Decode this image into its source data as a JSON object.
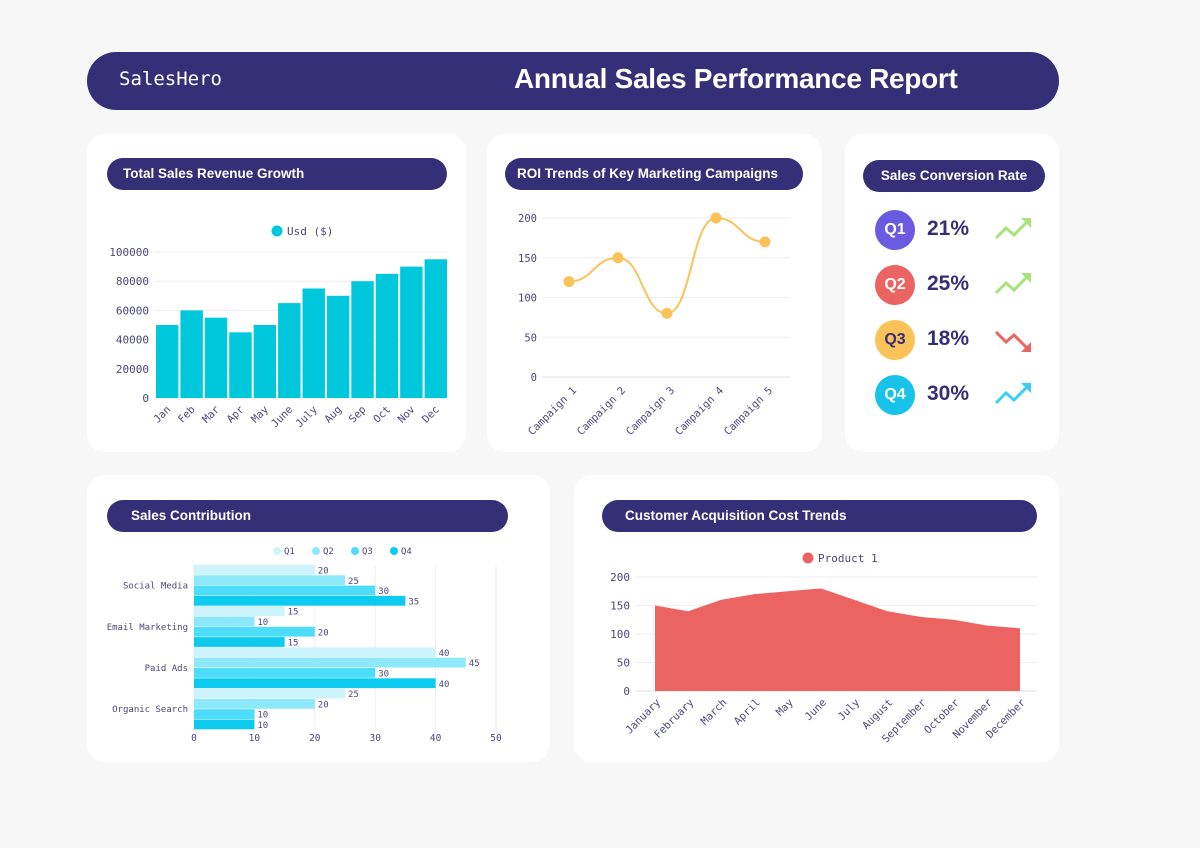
{
  "header": {
    "brand": "SalesHero",
    "title": "Annual Sales Performance Report"
  },
  "colors": {
    "navy": "#352f77",
    "teal": "#00c8dc",
    "orange": "#fcc25a",
    "red": "#eb6461"
  },
  "revenue": {
    "title": "Total Sales Revenue Growth",
    "chart_data": {
      "type": "bar",
      "title": "Total Sales Revenue Growth",
      "legend": [
        "Usd ($)"
      ],
      "categories": [
        "Jan",
        "Feb",
        "Mar",
        "Apr",
        "May",
        "June",
        "July",
        "Aug",
        "Sep",
        "Oct",
        "Nov",
        "Dec"
      ],
      "values": [
        50000,
        60000,
        55000,
        45000,
        50000,
        65000,
        75000,
        70000,
        80000,
        85000,
        90000,
        95000
      ],
      "yticks": [
        "0",
        "20000",
        "40000",
        "60000",
        "80000",
        "100000"
      ],
      "ylim": [
        0,
        100000
      ]
    }
  },
  "roi": {
    "title": "ROI Trends of Key Marketing Campaigns",
    "chart_data": {
      "type": "line",
      "categories": [
        "Campaign 1",
        "Campaign 2",
        "Campaign 3",
        "Campaign 4",
        "Campaign 5"
      ],
      "values": [
        120,
        150,
        80,
        200,
        170
      ],
      "yticks": [
        "0",
        "50",
        "100",
        "150",
        "200"
      ],
      "ylim": [
        0,
        200
      ]
    }
  },
  "conversion": {
    "title": "Sales Conversion Rate",
    "items": [
      {
        "label": "Q1",
        "value": "21%",
        "trend": "up",
        "badge_color": "#6a5ae0",
        "trend_color": "#a6e37a"
      },
      {
        "label": "Q2",
        "value": "25%",
        "trend": "up",
        "badge_color": "#eb6461",
        "trend_color": "#a6e37a"
      },
      {
        "label": "Q3",
        "value": "18%",
        "trend": "down",
        "badge_color": "#fcc25a",
        "trend_color": "#eb6461"
      },
      {
        "label": "Q4",
        "value": "30%",
        "trend": "up",
        "badge_color": "#17c3e8",
        "trend_color": "#3ad0f5"
      }
    ]
  },
  "contribution": {
    "title": "Sales Contribution",
    "chart_data": {
      "type": "bar",
      "orientation": "horizontal",
      "categories": [
        "Social Media",
        "Email Marketing",
        "Paid Ads",
        "Organic Search"
      ],
      "series": [
        {
          "name": "Q1",
          "color": "#cdf4fc",
          "values": [
            20,
            15,
            40,
            25
          ]
        },
        {
          "name": "Q2",
          "color": "#8ce8fa",
          "values": [
            25,
            10,
            45,
            20
          ]
        },
        {
          "name": "Q3",
          "color": "#4ddcfa",
          "values": [
            30,
            20,
            30,
            10
          ]
        },
        {
          "name": "Q4",
          "color": "#0ccbee",
          "values": [
            35,
            15,
            40,
            10
          ]
        }
      ],
      "xticks": [
        "0",
        "10",
        "20",
        "30",
        "40",
        "50"
      ],
      "xlim": [
        0,
        50
      ]
    }
  },
  "cac": {
    "title": "Customer Acquisition Cost Trends",
    "chart_data": {
      "type": "area",
      "legend": [
        "Product 1"
      ],
      "categories": [
        "January",
        "February",
        "March",
        "April",
        "May",
        "June",
        "July",
        "August",
        "September",
        "October",
        "November",
        "December"
      ],
      "values": [
        150,
        140,
        160,
        170,
        175,
        180,
        160,
        140,
        130,
        125,
        115,
        110
      ],
      "yticks": [
        "0",
        "50",
        "100",
        "150",
        "200"
      ],
      "ylim": [
        0,
        200
      ]
    }
  }
}
